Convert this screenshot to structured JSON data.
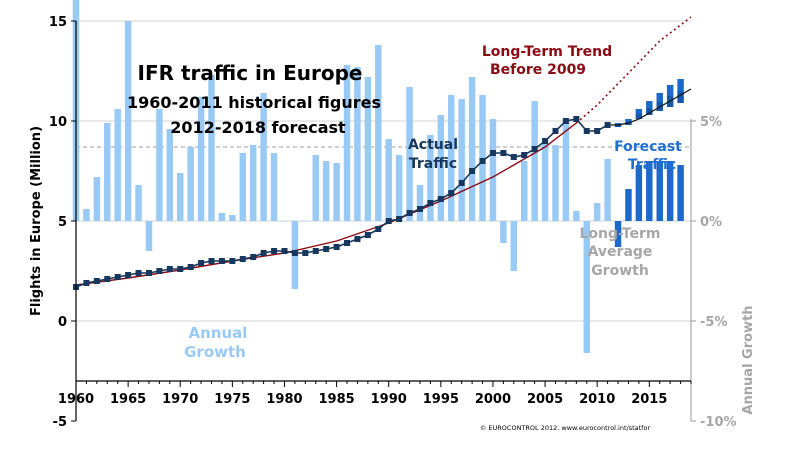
{
  "colors": {
    "actual": "#17375e",
    "trend": "#8b0a14",
    "forecast": "#1f6fd1",
    "forecast_label": "#1f6fd1",
    "bars_hist": "#99c9f5",
    "bars_forecast": "#1b6acb",
    "grey": "#999999",
    "grid": "#d3d3d3"
  },
  "chart_data": {
    "type": "line+bar",
    "title": "IFR traffic in Europe",
    "subtitle1": "1960-2011 historical figures",
    "subtitle2": "2012-2018 forecast",
    "ylabel": "Flights in Europe (Million)",
    "ylabel_right": "Annual Growth",
    "xlim": [
      1960,
      2019
    ],
    "ylim": [
      -5,
      15
    ],
    "ylim_right": [
      -10,
      10
    ],
    "x_ticks": [
      1960,
      1965,
      1970,
      1975,
      1980,
      1985,
      1990,
      1995,
      2000,
      2005,
      2010,
      2015
    ],
    "x_tick_labels": [
      "1960",
      "1965",
      "1970",
      "1975",
      "1980",
      "1985",
      "1990",
      "1995",
      "2000",
      "2005",
      "2010",
      "2015"
    ],
    "y_ticks": [
      -5,
      0,
      5,
      10,
      15
    ],
    "y_tick_labels": [
      "-5",
      "0",
      "5",
      "10",
      "15"
    ],
    "y_ticks_right": [
      -10,
      -5,
      0,
      5
    ],
    "y_tick_labels_right": [
      "-10%",
      "-5%",
      "0%",
      "5%"
    ],
    "annotations": {
      "actual": [
        "Actual",
        "Traffic"
      ],
      "forecast": [
        "Forecast",
        "Traffic"
      ],
      "trend": [
        "Long-Term Trend",
        "Before 2009"
      ],
      "long_term_avg": [
        "Long-Term",
        "Average",
        "Growth"
      ],
      "annual": [
        "Annual",
        "Growth"
      ],
      "copyright": "© EUROCONTROL 2012. www.eurocontrol.int/statfor"
    },
    "long_term_average_growth_pct": 3.7,
    "actual": {
      "name": "Actual Traffic",
      "x": [
        1960,
        1961,
        1962,
        1963,
        1964,
        1965,
        1966,
        1967,
        1968,
        1969,
        1970,
        1971,
        1972,
        1973,
        1974,
        1975,
        1976,
        1977,
        1978,
        1979,
        1980,
        1981,
        1982,
        1983,
        1984,
        1985,
        1986,
        1987,
        1988,
        1989,
        1990,
        1991,
        1992,
        1993,
        1994,
        1995,
        1996,
        1997,
        1998,
        1999,
        2000,
        2001,
        2002,
        2003,
        2004,
        2005,
        2006,
        2007,
        2008,
        2009,
        2010,
        2011
      ],
      "y": [
        1.7,
        1.9,
        2.0,
        2.1,
        2.2,
        2.3,
        2.4,
        2.4,
        2.5,
        2.6,
        2.6,
        2.7,
        2.9,
        3.0,
        3.0,
        3.0,
        3.1,
        3.2,
        3.4,
        3.5,
        3.5,
        3.4,
        3.4,
        3.5,
        3.6,
        3.7,
        3.9,
        4.1,
        4.3,
        4.6,
        5.0,
        5.1,
        5.4,
        5.6,
        5.9,
        6.1,
        6.4,
        6.9,
        7.5,
        8.0,
        8.4,
        8.4,
        8.2,
        8.3,
        8.6,
        9.0,
        9.5,
        10.0,
        10.1,
        9.5,
        9.5,
        9.8
      ]
    },
    "long_term_trend": {
      "name": "Long-Term Trend Before 2009",
      "x": [
        1960,
        1965,
        1970,
        1975,
        1980,
        1985,
        1990,
        1995,
        2000,
        2005,
        2008,
        2010,
        2013,
        2016,
        2019
      ],
      "y": [
        1.8,
        2.15,
        2.55,
        3.0,
        3.4,
        4.0,
        4.9,
        6.0,
        7.2,
        8.7,
        9.9,
        10.8,
        12.4,
        14.0,
        15.2
      ]
    },
    "forecast": {
      "name": "Forecast Traffic",
      "x": [
        2012,
        2013,
        2014,
        2015,
        2016,
        2017,
        2018
      ],
      "low": [
        9.7,
        9.8,
        10.1,
        10.3,
        10.5,
        10.7,
        10.9
      ],
      "high": [
        9.9,
        10.1,
        10.6,
        11.0,
        11.4,
        11.8,
        12.1
      ],
      "trend_line_x": [
        2011,
        2012,
        2013,
        2014,
        2015,
        2016,
        2017,
        2018,
        2019
      ],
      "trend_line_y": [
        9.8,
        9.8,
        9.9,
        10.1,
        10.4,
        10.7,
        11.0,
        11.3,
        11.6
      ]
    },
    "annual_growth": {
      "name": "Annual Growth (%)",
      "x": [
        1960,
        1961,
        1962,
        1963,
        1964,
        1965,
        1966,
        1967,
        1968,
        1969,
        1970,
        1971,
        1972,
        1973,
        1974,
        1975,
        1976,
        1977,
        1978,
        1979,
        1980,
        1981,
        1982,
        1983,
        1984,
        1985,
        1986,
        1987,
        1988,
        1989,
        1990,
        1991,
        1992,
        1993,
        1994,
        1995,
        1996,
        1997,
        1998,
        1999,
        2000,
        2001,
        2002,
        2003,
        2004,
        2005,
        2006,
        2007,
        2008,
        2009,
        2010,
        2011
      ],
      "values": [
        11.5,
        0.6,
        2.2,
        4.9,
        5.6,
        10.0,
        1.8,
        -1.5,
        5.6,
        4.6,
        2.4,
        3.7,
        6.2,
        7.3,
        0.4,
        0.3,
        3.4,
        3.8,
        6.4,
        3.4,
        0.0,
        -3.4,
        0.0,
        3.3,
        3.0,
        2.9,
        7.8,
        7.7,
        7.2,
        8.8,
        4.1,
        3.3,
        6.7,
        1.8,
        4.3,
        5.3,
        6.3,
        6.1,
        7.2,
        6.3,
        5.1,
        -1.1,
        -2.5,
        3.0,
        6.0,
        3.9,
        3.8,
        5.1,
        0.5,
        -6.6,
        0.9,
        3.1
      ],
      "forecast_x": [
        2012,
        2013,
        2014,
        2015,
        2016,
        2017,
        2018
      ],
      "forecast_values": [
        -1.3,
        1.6,
        2.8,
        3.0,
        3.0,
        3.0,
        2.8
      ]
    }
  }
}
